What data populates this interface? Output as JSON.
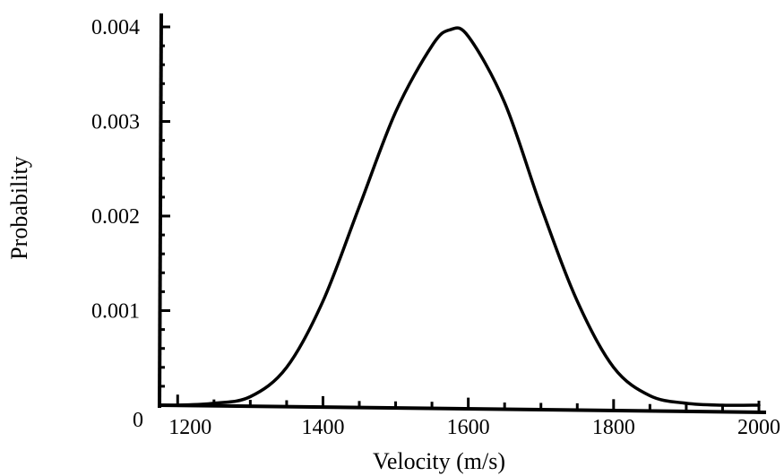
{
  "chart_data": {
    "type": "line",
    "title": "",
    "xlabel": "Velocity (m/s)",
    "ylabel": "Probability",
    "xlim": [
      1175,
      2000
    ],
    "ylim": [
      0,
      0.004
    ],
    "x_ticks": [
      1200,
      1400,
      1600,
      1800,
      2000
    ],
    "x_tick_labels": [
      "1200",
      "1400",
      "1600",
      "1800",
      "2000"
    ],
    "y_ticks": [
      0,
      0.001,
      0.002,
      0.003,
      0.004
    ],
    "y_tick_labels": [
      "0",
      "0.001",
      "0.002",
      "0.003",
      "0.004"
    ],
    "grid": false,
    "legend": "none",
    "series": [
      {
        "x": [
          1175,
          1200,
          1250,
          1300,
          1350,
          1400,
          1450,
          1500,
          1550,
          1575,
          1600,
          1650,
          1700,
          1750,
          1800,
          1850,
          1900,
          1950,
          2000
        ],
        "y": [
          0.0,
          0.0,
          2e-05,
          9e-05,
          0.0004,
          0.0011,
          0.0021,
          0.0031,
          0.0038,
          0.00397,
          0.0039,
          0.0032,
          0.0021,
          0.0011,
          0.0004,
          0.0001,
          2e-05,
          0.0,
          0.0
        ]
      }
    ],
    "color": "#000000"
  }
}
